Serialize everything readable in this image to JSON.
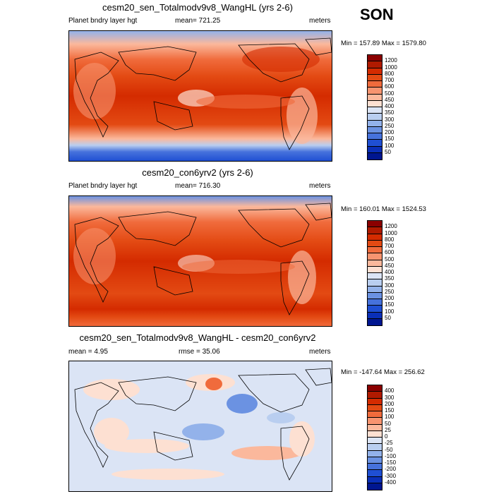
{
  "season": "SON",
  "panels": [
    {
      "title": "cesm20_sen_Totalmodv9v8_WangHL (yrs 2-6)",
      "left_label": "Planet bndry layer hgt",
      "center_label": "mean= 721.25",
      "right_label": "meters",
      "minmax": "Min = 157.89 Max = 1579.80",
      "colorbar": {
        "levels": [
          "1200",
          "1000",
          "800",
          "700",
          "600",
          "500",
          "450",
          "400",
          "350",
          "300",
          "250",
          "200",
          "150",
          "100",
          "50"
        ],
        "colors": [
          "#8b0000",
          "#b01a00",
          "#d42b00",
          "#e34a13",
          "#f06b3c",
          "#f79470",
          "#fbb89c",
          "#fde0d2",
          "#dbe4f5",
          "#b9cef0",
          "#93b2ea",
          "#6b92e2",
          "#4672dc",
          "#1f4fd3",
          "#0a2fb8",
          "#001690"
        ]
      }
    },
    {
      "title": "cesm20_con6yrv2 (yrs 2-6)",
      "left_label": "Planet bndry layer hgt",
      "center_label": "mean= 716.30",
      "right_label": "meters",
      "minmax": "Min = 160.01 Max = 1524.53",
      "colorbar": {
        "levels": [
          "1200",
          "1000",
          "800",
          "700",
          "600",
          "500",
          "450",
          "400",
          "350",
          "300",
          "250",
          "200",
          "150",
          "100",
          "50"
        ],
        "colors": [
          "#8b0000",
          "#b01a00",
          "#d42b00",
          "#e34a13",
          "#f06b3c",
          "#f79470",
          "#fbb89c",
          "#fde0d2",
          "#dbe4f5",
          "#b9cef0",
          "#93b2ea",
          "#6b92e2",
          "#4672dc",
          "#1f4fd3",
          "#0a2fb8",
          "#001690"
        ]
      }
    },
    {
      "title": "cesm20_sen_Totalmodv9v8_WangHL - cesm20_con6yrv2",
      "left_label": "mean =   4.95",
      "center_label": "rmse =  35.06",
      "right_label": "meters",
      "minmax": "Min = -147.64 Max = 256.62",
      "colorbar": {
        "levels": [
          "400",
          "300",
          "200",
          "150",
          "100",
          "50",
          "25",
          "0",
          "-25",
          "-50",
          "-100",
          "-150",
          "-200",
          "-300",
          "-400"
        ],
        "colors": [
          "#8b0000",
          "#b01a00",
          "#d42b00",
          "#e34a13",
          "#f06b3c",
          "#f79470",
          "#fbb89c",
          "#fde0d2",
          "#dbe4f5",
          "#b9cef0",
          "#93b2ea",
          "#6b92e2",
          "#4672dc",
          "#1f4fd3",
          "#0a2fb8",
          "#001690"
        ]
      }
    }
  ],
  "chart_data": [
    {
      "type": "heatmap",
      "title": "cesm20_sen_Totalmodv9v8_WangHL (yrs 2-6)",
      "variable": "Planet bndry layer hgt",
      "units": "meters",
      "mean": 721.25,
      "min": 157.89,
      "max": 1579.8,
      "levels": [
        50,
        100,
        150,
        200,
        250,
        300,
        350,
        400,
        450,
        500,
        600,
        700,
        800,
        1000,
        1200
      ],
      "palette": [
        "#001690",
        "#0a2fb8",
        "#1f4fd3",
        "#4672dc",
        "#6b92e2",
        "#93b2ea",
        "#b9cef0",
        "#dbe4f5",
        "#fde0d2",
        "#fbb89c",
        "#f79470",
        "#f06b3c",
        "#e34a13",
        "#d42b00",
        "#b01a00",
        "#8b0000"
      ]
    },
    {
      "type": "heatmap",
      "title": "cesm20_con6yrv2 (yrs 2-6)",
      "variable": "Planet bndry layer hgt",
      "units": "meters",
      "mean": 716.3,
      "min": 160.01,
      "max": 1524.53,
      "levels": [
        50,
        100,
        150,
        200,
        250,
        300,
        350,
        400,
        450,
        500,
        600,
        700,
        800,
        1000,
        1200
      ],
      "palette": [
        "#001690",
        "#0a2fb8",
        "#1f4fd3",
        "#4672dc",
        "#6b92e2",
        "#93b2ea",
        "#b9cef0",
        "#dbe4f5",
        "#fde0d2",
        "#fbb89c",
        "#f79470",
        "#f06b3c",
        "#e34a13",
        "#d42b00",
        "#b01a00",
        "#8b0000"
      ]
    },
    {
      "type": "heatmap",
      "title": "cesm20_sen_Totalmodv9v8_WangHL - cesm20_con6yrv2",
      "units": "meters",
      "mean": 4.95,
      "rmse": 35.06,
      "min": -147.64,
      "max": 256.62,
      "levels": [
        -400,
        -300,
        -200,
        -150,
        -100,
        -50,
        -25,
        0,
        25,
        50,
        100,
        150,
        200,
        300,
        400
      ],
      "palette": [
        "#001690",
        "#0a2fb8",
        "#1f4fd3",
        "#4672dc",
        "#6b92e2",
        "#93b2ea",
        "#b9cef0",
        "#dbe4f5",
        "#fde0d2",
        "#fbb89c",
        "#f79470",
        "#f06b3c",
        "#e34a13",
        "#d42b00",
        "#b01a00",
        "#8b0000"
      ]
    }
  ]
}
